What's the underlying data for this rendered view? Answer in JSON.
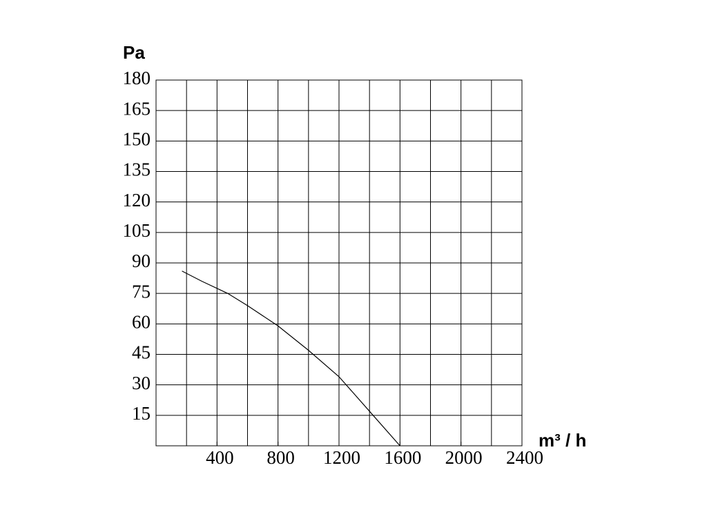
{
  "chart_data": {
    "type": "line",
    "y_label": "Pa",
    "x_label": "m³ / h",
    "x": [
      170,
      300,
      470,
      600,
      800,
      1000,
      1200,
      1400,
      1600
    ],
    "series": [
      {
        "color": "#000000",
        "values": [
          86,
          81,
          75,
          69,
          59,
          47,
          34,
          17,
          0
        ]
      }
    ],
    "xlim": [
      0,
      2400
    ],
    "xticks": [
      400,
      800,
      1200,
      1600,
      2000,
      2400
    ],
    "xgrid": [
      200,
      400,
      600,
      800,
      1000,
      1200,
      1400,
      1600,
      1800,
      2000,
      2200
    ],
    "ylim": [
      0,
      180
    ],
    "yticks": [
      15,
      30,
      45,
      60,
      75,
      90,
      105,
      120,
      135,
      150,
      165,
      180
    ],
    "grid": true
  }
}
